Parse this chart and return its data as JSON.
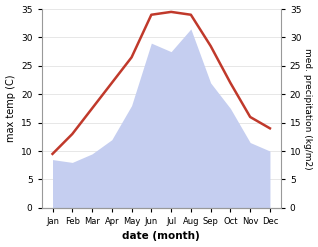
{
  "months": [
    "Jan",
    "Feb",
    "Mar",
    "Apr",
    "May",
    "Jun",
    "Jul",
    "Aug",
    "Sep",
    "Oct",
    "Nov",
    "Dec"
  ],
  "temperature": [
    9.5,
    13.0,
    17.5,
    22.0,
    26.5,
    34.0,
    34.5,
    34.0,
    28.5,
    22.0,
    16.0,
    14.0
  ],
  "precipitation": [
    8.5,
    8.0,
    9.5,
    12.0,
    18.0,
    29.0,
    27.5,
    31.5,
    22.0,
    17.5,
    11.5,
    10.0
  ],
  "temp_color": "#c0392b",
  "precip_color": "#c5cef0",
  "ylim": [
    0,
    35
  ],
  "yticks": [
    0,
    5,
    10,
    15,
    20,
    25,
    30,
    35
  ],
  "xlabel": "date (month)",
  "ylabel_left": "max temp (C)",
  "ylabel_right": "med. precipitation (kg/m2)",
  "background_color": "#ffffff",
  "line_width": 1.8
}
